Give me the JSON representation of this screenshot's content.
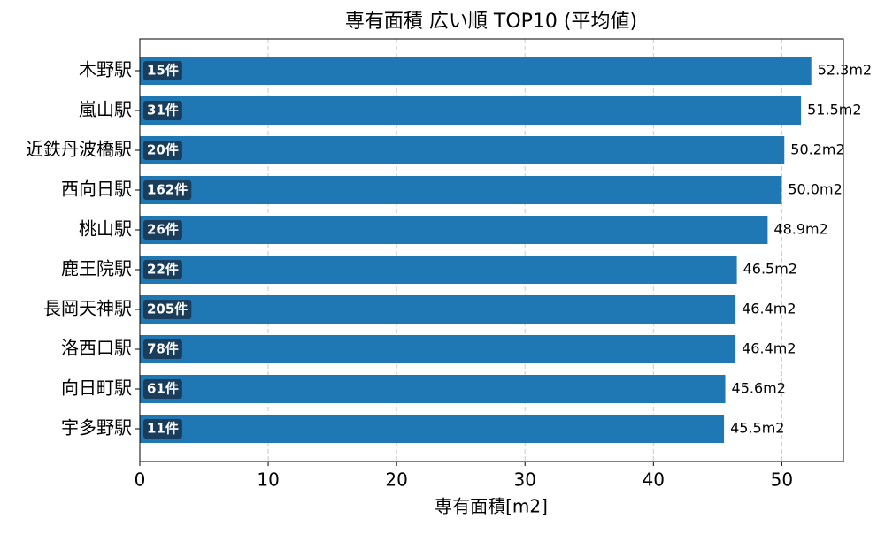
{
  "chart_data": {
    "type": "barh",
    "title": "専有面積 広い順 TOP10 (平均値)",
    "xlabel": "専有面積[m2]",
    "categories": [
      "木野駅",
      "嵐山駅",
      "近鉄丹波橋駅",
      "西向日駅",
      "桃山駅",
      "鹿王院駅",
      "長岡天神駅",
      "洛西口駅",
      "向日町駅",
      "宇多野駅"
    ],
    "values": [
      52.3,
      51.5,
      50.2,
      50.0,
      48.9,
      46.5,
      46.4,
      46.4,
      45.6,
      45.5
    ],
    "value_labels": [
      "52.3m2",
      "51.5m2",
      "50.2m2",
      "50.0m2",
      "48.9m2",
      "46.5m2",
      "46.4m2",
      "46.4m2",
      "45.6m2",
      "45.5m2"
    ],
    "count_labels": [
      "15件",
      "31件",
      "20件",
      "162件",
      "26件",
      "22件",
      "205件",
      "78件",
      "61件",
      "11件"
    ],
    "color": "#1f77b4",
    "xlim": [
      0,
      54.8
    ],
    "xticks": [
      0,
      10,
      20,
      30,
      40,
      50
    ],
    "grid": true
  }
}
